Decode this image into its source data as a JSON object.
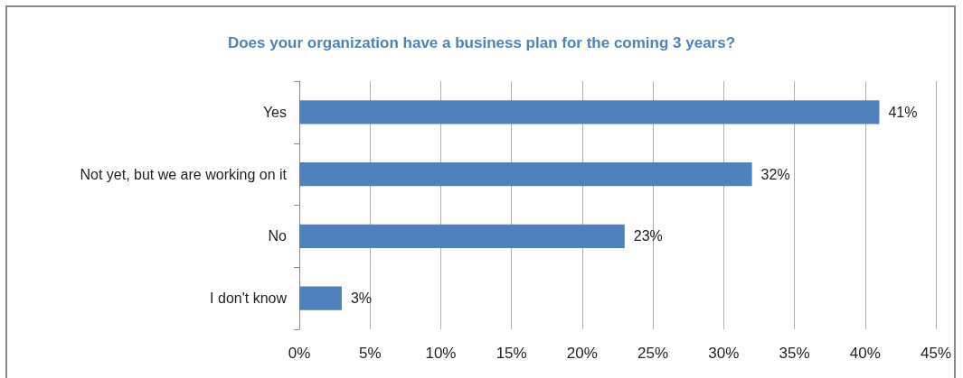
{
  "chart_data": {
    "type": "bar",
    "orientation": "horizontal",
    "title": "Does your organization have a business plan for the coming 3 years?",
    "categories": [
      "Yes",
      "Not yet, but we are working on it",
      "No",
      "I don't know"
    ],
    "values": [
      41,
      32,
      23,
      3
    ],
    "color": "#4f81bd",
    "value_labels": [
      "41%",
      "32%",
      "23%",
      "3%"
    ],
    "xlim": [
      0,
      45
    ],
    "xticks": [
      {
        "value": 0,
        "label": "0%"
      },
      {
        "value": 5,
        "label": "5%"
      },
      {
        "value": 10,
        "label": "10%"
      },
      {
        "value": 15,
        "label": "15%"
      },
      {
        "value": 20,
        "label": "20%"
      },
      {
        "value": 25,
        "label": "25%"
      },
      {
        "value": 30,
        "label": "30%"
      },
      {
        "value": 35,
        "label": "35%"
      },
      {
        "value": 40,
        "label": "40%"
      },
      {
        "value": 45,
        "label": "45%"
      }
    ],
    "grid": "x"
  }
}
